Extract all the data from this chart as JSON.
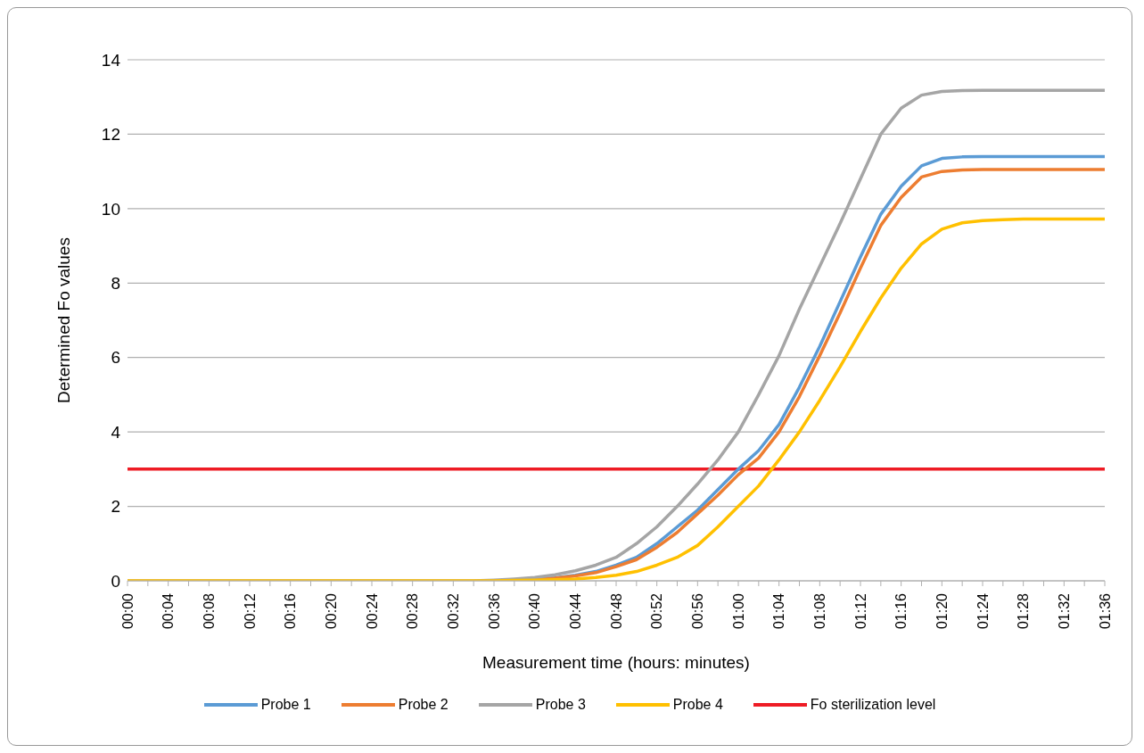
{
  "chart_data": {
    "type": "line",
    "xlabel": "Measurement time (hours: minutes)",
    "ylabel": "Determined Fo values",
    "categories": [
      "00:00",
      null,
      "00:04",
      null,
      "00:08",
      null,
      "00:12",
      null,
      "00:16",
      null,
      "00:20",
      null,
      "00:24",
      null,
      "00:28",
      null,
      "00:32",
      null,
      "00:36",
      null,
      "00:40",
      null,
      "00:44",
      null,
      "00:48",
      null,
      "00:52",
      null,
      "00:56",
      null,
      "01:00",
      null,
      "01:04",
      null,
      "01:08",
      null,
      "01:12",
      null,
      "01:16",
      null,
      "01:20",
      null,
      "01:24",
      null,
      "01:28",
      null,
      "01:32",
      null,
      "01:36"
    ],
    "series": [
      {
        "name": "Probe 1",
        "color": "#5b9bd5",
        "values": [
          null,
          null,
          null,
          null,
          null,
          null,
          null,
          null,
          null,
          null,
          null,
          null,
          null,
          null,
          null,
          null,
          null,
          null,
          null,
          null,
          0.04,
          0.08,
          0.15,
          0.25,
          0.42,
          0.63,
          1.0,
          1.45,
          1.9,
          2.45,
          3.0,
          3.5,
          4.2,
          5.2,
          6.3,
          7.5,
          8.7,
          9.85,
          10.6,
          11.15,
          11.35,
          11.39,
          11.4,
          11.4,
          11.4,
          11.4,
          11.4,
          11.4,
          11.4
        ]
      },
      {
        "name": "Probe 2",
        "color": "#ed7d31",
        "values": [
          null,
          null,
          null,
          null,
          null,
          null,
          null,
          null,
          null,
          null,
          null,
          null,
          null,
          null,
          null,
          null,
          null,
          null,
          null,
          0.02,
          0.03,
          0.07,
          0.13,
          0.22,
          0.38,
          0.57,
          0.9,
          1.3,
          1.8,
          2.3,
          2.85,
          3.3,
          4.0,
          4.95,
          6.05,
          7.2,
          8.4,
          9.55,
          10.3,
          10.85,
          11.0,
          11.04,
          11.05,
          11.05,
          11.05,
          11.05,
          11.05,
          11.05,
          11.05
        ]
      },
      {
        "name": "Probe 3",
        "color": "#a5a5a5",
        "values": [
          0,
          0,
          0,
          0,
          0,
          0,
          0,
          0,
          0,
          0,
          0,
          0,
          0,
          0,
          0,
          0,
          0,
          0,
          0.02,
          0.05,
          0.09,
          0.16,
          0.27,
          0.42,
          0.63,
          1.0,
          1.45,
          2.0,
          2.6,
          3.25,
          4.0,
          5.0,
          6.05,
          7.3,
          8.45,
          9.6,
          10.8,
          12.0,
          12.7,
          13.05,
          13.15,
          13.17,
          13.18,
          13.18,
          13.18,
          13.18,
          13.18,
          13.18,
          13.18
        ]
      },
      {
        "name": "Probe 4",
        "color": "#ffc000",
        "values": [
          0,
          0,
          0,
          0,
          0,
          0,
          0,
          0,
          0,
          0,
          0,
          0,
          0,
          0,
          0,
          0,
          0,
          0,
          0,
          0.01,
          0.02,
          0.03,
          0.05,
          0.09,
          0.15,
          0.25,
          0.42,
          0.63,
          0.95,
          1.45,
          2.0,
          2.55,
          3.25,
          4.0,
          4.85,
          5.75,
          6.7,
          7.6,
          8.4,
          9.05,
          9.45,
          9.62,
          9.68,
          9.7,
          9.72,
          9.72,
          9.72,
          9.72,
          9.72
        ]
      }
    ],
    "ref_lines": [
      {
        "axis": "y",
        "value": 3,
        "label": "Fo sterilization level",
        "color": "#ee1c25"
      }
    ],
    "ylim": [
      0,
      14
    ],
    "yticks": [
      0,
      2,
      4,
      6,
      8,
      10,
      12,
      14
    ],
    "grid": "y",
    "legend": "bottom",
    "marker": "none",
    "line_style": "solid"
  }
}
